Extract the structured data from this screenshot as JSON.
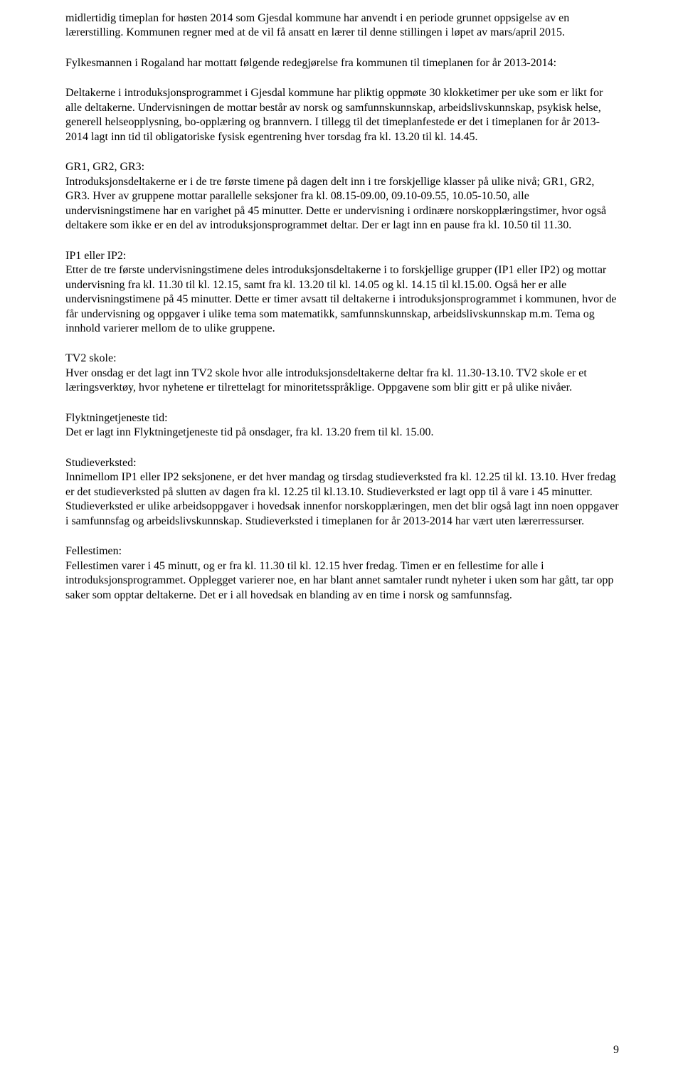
{
  "para1": "midlertidig timeplan for høsten 2014 som Gjesdal kommune har anvendt i en periode grunnet oppsigelse av en lærerstilling. Kommunen regner med at de vil få ansatt en lærer til denne stillingen i løpet av mars/april 2015.",
  "para2": "Fylkesmannen i Rogaland har mottatt følgende redegjørelse fra kommunen til timeplanen for år 2013-2014:",
  "para3": "Deltakerne i introduksjonsprogrammet i Gjesdal kommune har pliktig oppmøte 30 klokketimer per uke som er likt for alle deltakerne. Undervisningen de mottar består av norsk og samfunnskunnskap, arbeidslivskunnskap, psykisk helse, generell helseopplysning, bo-opplæring og brannvern. I tillegg til det timeplanfestede er det i timeplanen for år 2013-2014 lagt inn tid til obligatoriske fysisk egentrening hver torsdag fra kl. 13.20 til kl. 14.45.",
  "gr_label": "GR1, GR2, GR3:",
  "gr_body": "Introduksjonsdeltakerne er i de tre første timene på dagen delt inn i tre forskjellige klasser på ulike nivå; GR1, GR2, GR3. Hver av gruppene mottar parallelle seksjoner fra kl. 08.15-09.00, 09.10-09.55, 10.05-10.50, alle undervisningstimene har en varighet på 45 minutter. Dette er undervisning i ordinære norskopplæringstimer, hvor også deltakere som ikke er en del av introduksjonsprogrammet deltar. Der er lagt inn en pause fra kl. 10.50 til 11.30.",
  "ip_label": "IP1 eller IP2:",
  "ip_body": "Etter de tre første undervisningstimene deles introduksjonsdeltakerne i to forskjellige grupper (IP1 eller IP2) og mottar undervisning fra kl. 11.30 til kl. 12.15, samt fra kl. 13.20 til kl. 14.05 og kl. 14.15 til kl.15.00. Også her er alle undervisningstimene på 45 minutter. Dette er timer avsatt til deltakerne i introduksjonsprogrammet i kommunen, hvor de får undervisning og oppgaver i ulike tema som matematikk, samfunnskunnskap, arbeidslivskunnskap m.m. Tema og innhold varierer mellom de to ulike gruppene.",
  "tv2_label": "TV2 skole:",
  "tv2_body": "Hver onsdag er det lagt inn TV2 skole hvor alle introduksjonsdeltakerne deltar fra kl. 11.30-13.10. TV2 skole er et læringsverktøy, hvor nyhetene er tilrettelagt for minoritetsspråklige. Oppgavene som blir gitt er på ulike nivåer.",
  "flykt_label": "Flyktningetjeneste tid:",
  "flykt_body": "Det er lagt inn Flyktningetjeneste tid på onsdager, fra kl. 13.20 frem til kl. 15.00.",
  "studie_label": "Studieverksted:",
  "studie_body": "Innimellom IP1 eller IP2 seksjonene, er det hver mandag og tirsdag studieverksted fra kl. 12.25 til kl. 13.10. Hver fredag er det studieverksted på slutten av dagen fra kl. 12.25 til kl.13.10. Studieverksted er lagt opp til å vare i 45 minutter. Studieverksted er ulike arbeidsoppgaver i hovedsak innenfor norskopplæringen, men det blir også lagt inn noen oppgaver i samfunnsfag og arbeidslivskunnskap. Studieverksted i timeplanen for år 2013-2014 har vært uten lærerressurser.",
  "felles_label": "Fellestimen:",
  "felles_body": "Fellestimen varer i 45 minutt, og er fra kl. 11.30 til kl. 12.15 hver fredag. Timen er en fellestime for alle i introduksjonsprogrammet. Opplegget varierer noe, en har blant annet samtaler rundt nyheter i uken som har gått, tar opp saker som opptar deltakerne. Det er i all hovedsak en blanding av en time i norsk og samfunnsfag.",
  "page_number": "9"
}
